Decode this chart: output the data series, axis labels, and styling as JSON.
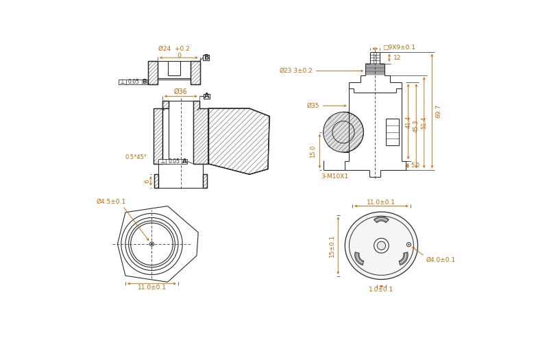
{
  "bg": "#ffffff",
  "lc": "#2a2a2a",
  "dc": "#cc6600",
  "hc": "#555555",
  "fig_w": 8.01,
  "fig_h": 5.28,
  "dpi": 100,
  "labels": {
    "dim_24": "Ø24  +0.2\n      0",
    "datum_B": "B",
    "perp_B": "⊥ 0.05 B",
    "dim_36": "Ø36",
    "datum_A": "A",
    "perp_A": "⊥ 0.05 A",
    "angle": "0.5*45°",
    "dim_6": "6",
    "dim_9x9": "□9X9±0.1",
    "dim_12": "12",
    "dim_23": "Ø23.3±0.2",
    "dim_35": "Ø35",
    "dim_15l": "15.0",
    "dim_5": "5.0",
    "dim_414": "41.4",
    "dim_453": "45.3",
    "dim_514": "51.4",
    "dim_697": "69.7",
    "thread": "3-M10X1",
    "dim_45": "Ø4.5±0.1",
    "dim_11bl": "11.0±0.1",
    "dim_11br": "11.0±0.1",
    "dim_40": "Ø4.0±0.1",
    "dim_15br": "15±0.1",
    "dim_10": "1.0±0.1"
  }
}
